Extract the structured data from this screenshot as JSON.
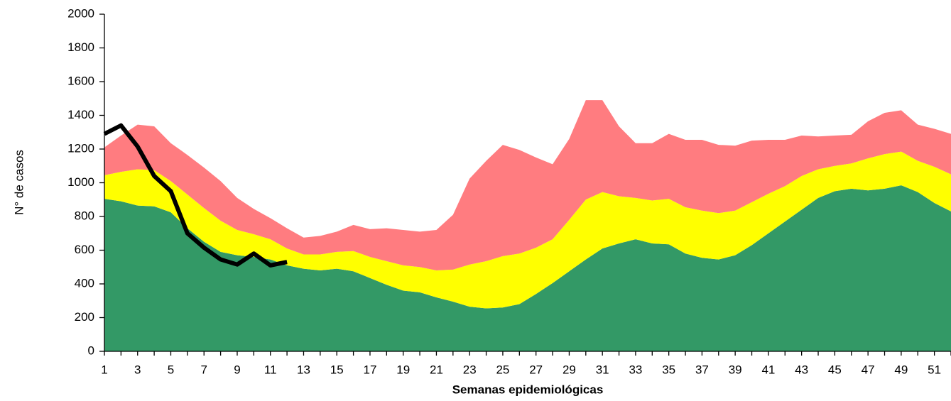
{
  "chart_data": {
    "type": "area",
    "ylabel": "N° de casos",
    "xlabel": "Semanas epidemiológicas",
    "x": [
      1,
      2,
      3,
      4,
      5,
      6,
      7,
      8,
      9,
      10,
      11,
      12,
      13,
      14,
      15,
      16,
      17,
      18,
      19,
      20,
      21,
      22,
      23,
      24,
      25,
      26,
      27,
      28,
      29,
      30,
      31,
      32,
      33,
      34,
      35,
      36,
      37,
      38,
      39,
      40,
      41,
      42,
      43,
      44,
      45,
      46,
      47,
      48,
      49,
      50,
      51,
      52
    ],
    "xlim": [
      1,
      52
    ],
    "xticks": [
      1,
      3,
      5,
      7,
      9,
      11,
      13,
      15,
      17,
      19,
      21,
      23,
      25,
      27,
      29,
      31,
      33,
      35,
      37,
      39,
      41,
      43,
      45,
      47,
      49,
      51
    ],
    "ylim": [
      0,
      2000
    ],
    "yticks": [
      0,
      200,
      400,
      600,
      800,
      1000,
      1200,
      1400,
      1600,
      1800,
      2000
    ],
    "stacked": true,
    "series": [
      {
        "color": "#339966",
        "values": [
          905,
          890,
          865,
          860,
          825,
          730,
          650,
          590,
          570,
          560,
          545,
          510,
          490,
          480,
          490,
          475,
          435,
          395,
          360,
          350,
          320,
          295,
          265,
          255,
          260,
          280,
          340,
          405,
          475,
          545,
          610,
          640,
          665,
          640,
          635,
          580,
          555,
          545,
          570,
          630,
          700,
          770,
          840,
          910,
          950,
          965,
          955,
          965,
          985,
          945,
          880,
          830
        ]
      },
      {
        "color": "#ffff00",
        "values": [
          140,
          175,
          215,
          215,
          185,
          200,
          200,
          185,
          150,
          135,
          120,
          100,
          85,
          95,
          100,
          120,
          125,
          140,
          150,
          150,
          160,
          190,
          250,
          280,
          305,
          300,
          275,
          260,
          305,
          355,
          335,
          280,
          245,
          255,
          270,
          275,
          280,
          275,
          265,
          255,
          235,
          210,
          200,
          170,
          150,
          150,
          190,
          205,
          200,
          185,
          215,
          220
        ]
      },
      {
        "color": "#ff7c80",
        "values": [
          165,
          215,
          265,
          260,
          225,
          235,
          240,
          235,
          190,
          150,
          125,
          120,
          100,
          110,
          120,
          155,
          165,
          195,
          210,
          210,
          240,
          325,
          510,
          595,
          660,
          615,
          535,
          445,
          480,
          590,
          545,
          415,
          325,
          340,
          385,
          400,
          420,
          405,
          385,
          365,
          320,
          275,
          240,
          195,
          180,
          170,
          220,
          245,
          245,
          215,
          225,
          240
        ]
      },
      {
        "type": "line",
        "color": "#000000",
        "values": [
          1290,
          1340,
          1215,
          1040,
          950,
          700,
          615,
          545,
          515,
          580,
          510,
          530,
          null,
          null,
          null,
          null,
          null,
          null,
          null,
          null,
          null,
          null,
          null,
          null,
          null,
          null,
          null,
          null,
          null,
          null,
          null,
          null,
          null,
          null,
          null,
          null,
          null,
          null,
          null,
          null,
          null,
          null,
          null,
          null,
          null,
          null,
          null,
          null,
          null,
          null,
          null,
          null
        ]
      }
    ]
  }
}
